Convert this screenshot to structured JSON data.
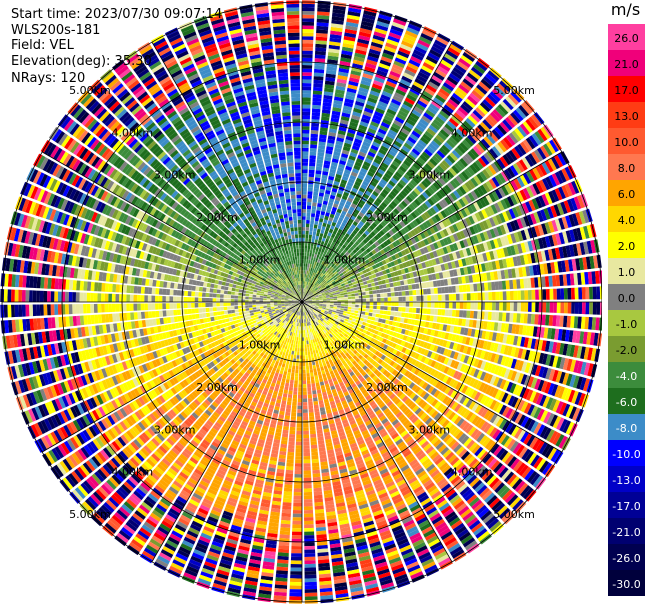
{
  "header": {
    "start_time": "Start time: 2023/07/30 09:07:14",
    "instrument": "WLS200s-181",
    "field": "Field: VEL",
    "elevation": "Elevation(deg): 35.30",
    "nrays": "NRays: 120"
  },
  "colorbar": {
    "unit": "m/s",
    "levels": [
      {
        "label": "26.0",
        "color": "#ff3fa0"
      },
      {
        "label": "21.0",
        "color": "#f0007a"
      },
      {
        "label": "17.0",
        "color": "#ff0000"
      },
      {
        "label": "13.0",
        "color": "#ff3c14"
      },
      {
        "label": "10.0",
        "color": "#ff5a30"
      },
      {
        "label": "8.0",
        "color": "#ff7850"
      },
      {
        "label": "6.0",
        "color": "#ffa500"
      },
      {
        "label": "4.0",
        "color": "#ffd700"
      },
      {
        "label": "2.0",
        "color": "#ffff00"
      },
      {
        "label": "1.0",
        "color": "#e8e8a0"
      },
      {
        "label": "0.0",
        "color": "#808080"
      },
      {
        "label": "-1.0",
        "color": "#a8c840"
      },
      {
        "label": "-2.0",
        "color": "#7a9c30"
      },
      {
        "label": "-4.0",
        "color": "#3c8c3c"
      },
      {
        "label": "-6.0",
        "color": "#1e6e1e"
      },
      {
        "label": "-8.0",
        "color": "#3c8cc8"
      },
      {
        "label": "-10.0",
        "color": "#0000ff"
      },
      {
        "label": "-13.0",
        "color": "#0000c8"
      },
      {
        "label": "-17.0",
        "color": "#000096"
      },
      {
        "label": "-21.0",
        "color": "#000070"
      },
      {
        "label": "-26.0",
        "color": "#000050"
      },
      {
        "label": "-30.0",
        "color": "#00003c"
      }
    ]
  },
  "chart_data": {
    "type": "heatmap",
    "projection": "polar (PPI scan)",
    "field": "VEL",
    "units": "m/s",
    "n_rays": 120,
    "range_ring_labels": [
      "1.00km",
      "2.00km",
      "3.00km",
      "4.00km",
      "5.00km"
    ],
    "range_rings_km": [
      1,
      2,
      3,
      4,
      5
    ],
    "max_range_km": 5.0,
    "velocity_pattern": {
      "north_near": -8.0,
      "south_near": 8.0,
      "east_west_near": 2.0,
      "outer_ring_km_start": 3.6,
      "outer_ring_note": "noisy values spanning full scale"
    },
    "color_scale": [
      -30,
      -26,
      -21,
      -17,
      -13,
      -10,
      -8,
      -6,
      -4,
      -2,
      -1,
      0,
      1,
      2,
      4,
      6,
      8,
      10,
      13,
      17,
      21,
      26
    ]
  }
}
